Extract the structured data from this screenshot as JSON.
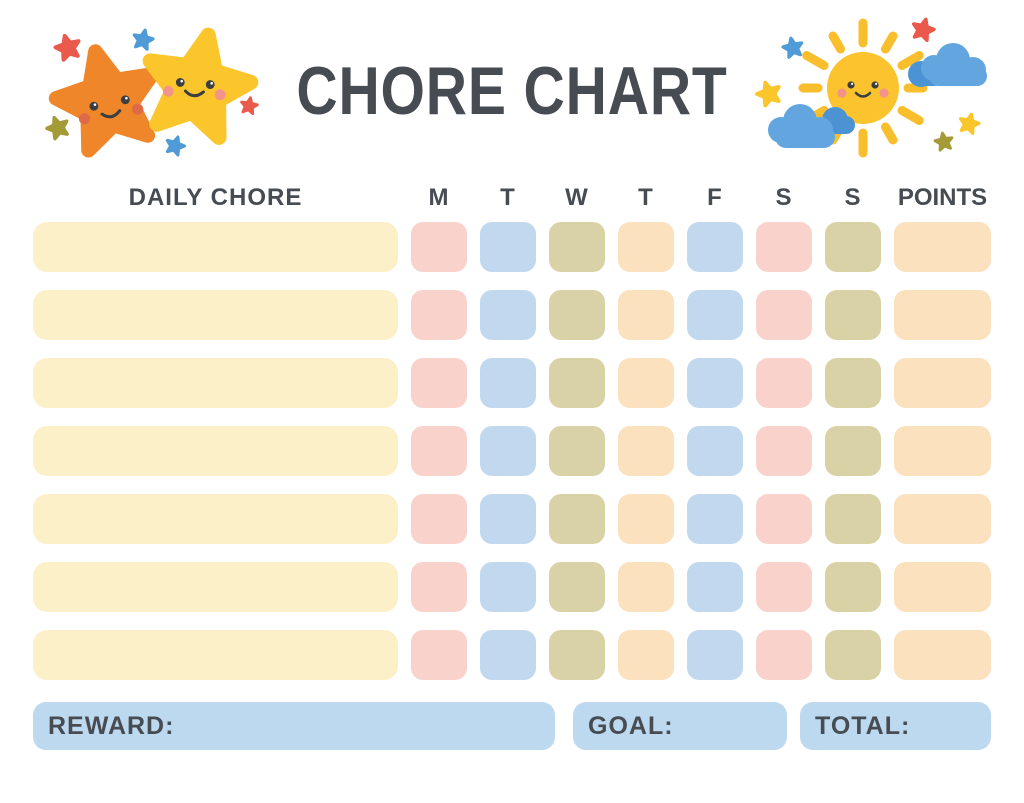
{
  "title": "CHORE CHART",
  "table": {
    "chore_header": "DAILY CHORE",
    "day_headers": [
      "M",
      "T",
      "W",
      "T",
      "F",
      "S",
      "S"
    ],
    "points_header": "POINTS",
    "row_count": 7,
    "chore_cell_color": "cream",
    "day_cell_colors": [
      "pink",
      "blue",
      "olive",
      "peach",
      "blue",
      "pink",
      "olive"
    ],
    "points_cell_color": "peach"
  },
  "footer": {
    "reward_label": "REWARD:",
    "goal_label": "GOAL:",
    "total_label": "TOTAL:"
  },
  "decorations": {
    "left": "two-smiling-stars-with-mini-stars",
    "right": "smiling-sun-with-clouds-and-mini-stars"
  },
  "colors": {
    "text": "#474C52",
    "cream": "#FCF0C8",
    "pink": "#F9D2CB",
    "blue": "#C2D8EE",
    "olive": "#D9D2A6",
    "peach": "#FBE1BE",
    "footer_blue": "#BDD9F0",
    "orange_star": "#F0862A",
    "yellow_star": "#FBC62B",
    "red_star": "#E9594C",
    "blue_star": "#4E9BD8",
    "olive_star": "#A49A37",
    "cloud_blue": "#63A6DF",
    "cloud_blue_dark": "#4C93D4",
    "sun_yellow": "#FBC32D",
    "ray_yellow": "#F9BE2B",
    "face_dark": "#3B3F42",
    "cheek_pink": "#F2948A",
    "cheek_orange": "#E06A45"
  }
}
